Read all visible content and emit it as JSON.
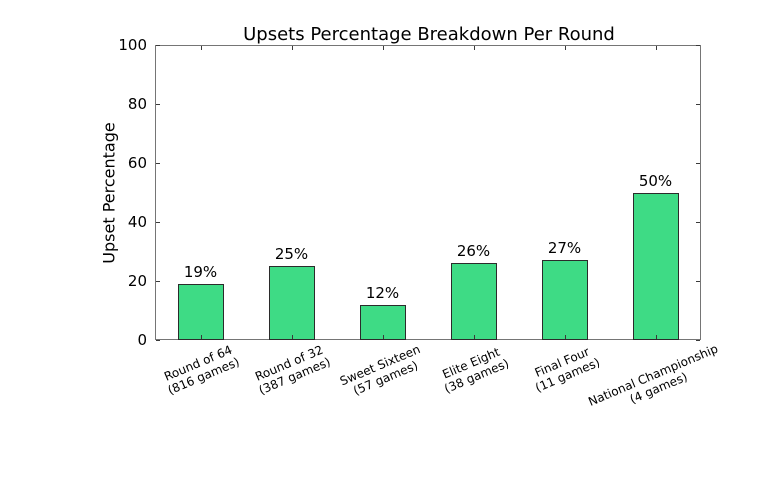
{
  "chart_data": {
    "type": "bar",
    "title": "Upsets Percentage Breakdown Per Round",
    "ylabel": "Upset Percentage",
    "xlabel": "",
    "categories": [
      {
        "round": "Round of 64",
        "games": "(816 games)"
      },
      {
        "round": "Round of 32",
        "games": "(387 games)"
      },
      {
        "round": "Sweet Sixteen",
        "games": "(57 games)"
      },
      {
        "round": "Elite Eight",
        "games": "(38 games)"
      },
      {
        "round": "Final Four",
        "games": "(11 games)"
      },
      {
        "round": "National Championship",
        "games": "(4 games)"
      }
    ],
    "values": [
      19,
      25,
      12,
      26,
      27,
      50
    ],
    "value_labels": [
      "19%",
      "25%",
      "12%",
      "26%",
      "27%",
      "50%"
    ],
    "ylim": [
      0,
      100
    ],
    "yticks": [
      0,
      20,
      40,
      60,
      80,
      100
    ],
    "grid": false,
    "legend_position": "none",
    "x_tick_label_rotation_deg": 23,
    "colors": {
      "bar_fill": "#3EDB85",
      "bar_edge": "#2b2b2b",
      "axis_spine": "#757575",
      "tick_mark": "#3a3a3a",
      "text": "#000000",
      "background": "#ffffff"
    }
  }
}
